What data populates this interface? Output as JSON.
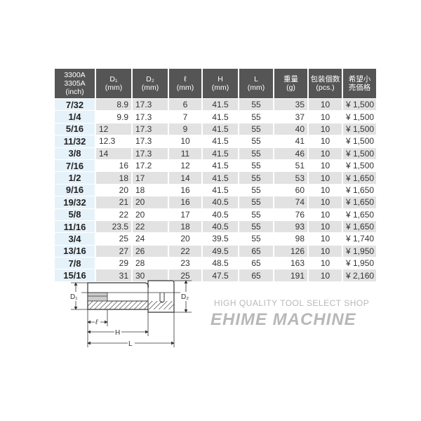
{
  "table": {
    "headers": [
      [
        "3300A",
        "3305A",
        "(inch)"
      ],
      [
        "D₁",
        "(mm)"
      ],
      [
        "D₂",
        "(mm)"
      ],
      [
        "ℓ",
        "(mm)"
      ],
      [
        "H",
        "(mm)"
      ],
      [
        "L",
        "(mm)"
      ],
      [
        "重量",
        "(g)"
      ],
      [
        "包装個数",
        "(pcs.)"
      ],
      [
        "希望小",
        "売価格"
      ]
    ],
    "rows": [
      [
        "7/32",
        "8.9",
        "17.3",
        "6",
        "41.5",
        "55",
        "35",
        "10",
        "¥ 1,500"
      ],
      [
        "1/4",
        "9.9",
        "17.3",
        "7",
        "41.5",
        "55",
        "37",
        "10",
        "¥ 1,500"
      ],
      [
        "5/16",
        "12",
        "17.3",
        "9",
        "41.5",
        "55",
        "40",
        "10",
        "¥ 1,500"
      ],
      [
        "11/32",
        "12.3",
        "17.3",
        "10",
        "41.5",
        "55",
        "41",
        "10",
        "¥ 1,500"
      ],
      [
        "3/8",
        "14",
        "17.3",
        "11",
        "41.5",
        "55",
        "46",
        "10",
        "¥ 1,500"
      ],
      [
        "7/16",
        "16",
        "17.2",
        "12",
        "41.5",
        "55",
        "51",
        "10",
        "¥ 1,500"
      ],
      [
        "1/2",
        "18",
        "17",
        "14",
        "41.5",
        "55",
        "53",
        "10",
        "¥ 1,650"
      ],
      [
        "9/16",
        "20",
        "18",
        "16",
        "41.5",
        "55",
        "60",
        "10",
        "¥ 1,650"
      ],
      [
        "19/32",
        "21",
        "20",
        "16",
        "40.5",
        "55",
        "74",
        "10",
        "¥ 1,650"
      ],
      [
        "5/8",
        "22",
        "20",
        "17",
        "40.5",
        "55",
        "76",
        "10",
        "¥ 1,650"
      ],
      [
        "11/16",
        "23.5",
        "22",
        "18",
        "40.5",
        "55",
        "93",
        "10",
        "¥ 1,650"
      ],
      [
        "3/4",
        "25",
        "24",
        "20",
        "39.5",
        "55",
        "98",
        "10",
        "¥ 1,740"
      ],
      [
        "13/16",
        "27",
        "26",
        "22",
        "49.5",
        "65",
        "126",
        "10",
        "¥ 1,950"
      ],
      [
        "7/8",
        "29",
        "28",
        "23",
        "48.5",
        "65",
        "163",
        "10",
        "¥ 1,950"
      ],
      [
        "15/16",
        "31",
        "30",
        "25",
        "47.5",
        "65",
        "191",
        "10",
        "¥ 2,160"
      ]
    ]
  },
  "watermark": {
    "line1": "HIGH QUALITY TOOL SELECT SHOP",
    "line2": "EHIME MACHINE"
  },
  "diagram": {
    "labels": {
      "d1": "D₁",
      "d2": "D₂",
      "l_small": "ℓ",
      "h": "H",
      "l": "L"
    }
  }
}
